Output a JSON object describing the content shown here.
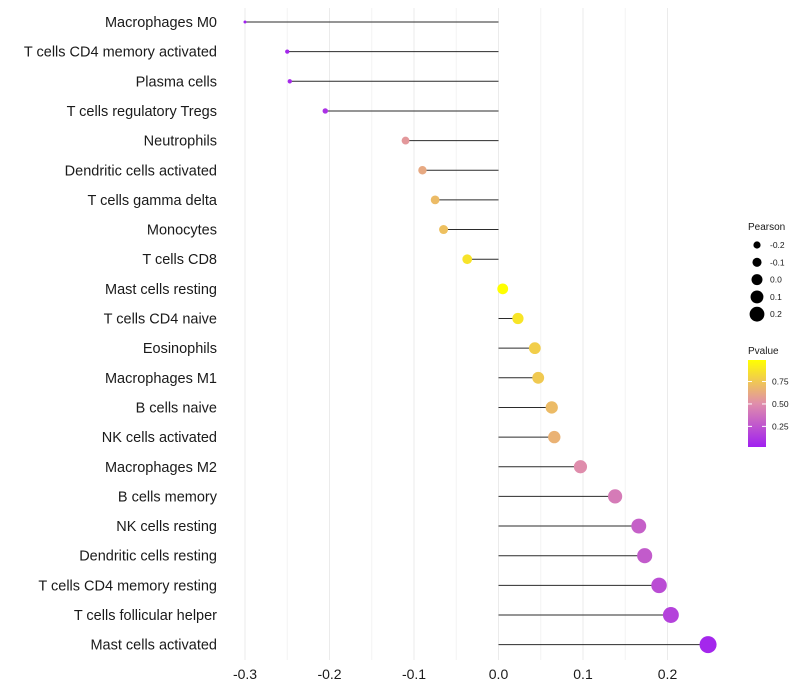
{
  "chart_data": {
    "type": "lollipop",
    "title": "",
    "xlabel": "",
    "ylabel": "",
    "xlim": [
      -0.31,
      0.26
    ],
    "x_ticks": [
      -0.3,
      -0.2,
      -0.1,
      0.0,
      0.1,
      0.2
    ],
    "x_tick_labels": [
      "-0.3",
      "-0.2",
      "-0.1",
      "0.0",
      "0.1",
      "0.2"
    ],
    "grid": true,
    "categories": [
      "Macrophages M0",
      "T cells CD4 memory activated",
      "Plasma cells",
      "T cells regulatory  Tregs ",
      "Neutrophils",
      "Dendritic cells activated",
      "T cells gamma delta",
      "Monocytes",
      "T cells CD8",
      "Mast cells resting",
      "T cells CD4 naive",
      "Eosinophils",
      "Macrophages M1",
      "B cells naive",
      "NK cells activated",
      "Macrophages M2",
      "B cells memory",
      "NK cells resting",
      "Dendritic cells resting",
      "T cells CD4 memory resting",
      "T cells follicular helper",
      "Mast cells activated"
    ],
    "pearson": [
      -0.3,
      -0.25,
      -0.247,
      -0.205,
      -0.11,
      -0.09,
      -0.075,
      -0.065,
      -0.037,
      0.005,
      0.023,
      0.043,
      0.047,
      0.063,
      0.066,
      0.097,
      0.138,
      0.166,
      0.173,
      0.19,
      0.204,
      0.248
    ],
    "pvalue": [
      0.02,
      0.05,
      0.06,
      0.1,
      0.55,
      0.62,
      0.7,
      0.72,
      0.87,
      0.99,
      0.88,
      0.78,
      0.76,
      0.7,
      0.66,
      0.5,
      0.42,
      0.3,
      0.28,
      0.22,
      0.17,
      0.05
    ],
    "legend": {
      "placement": "right",
      "size_title": "Pearson",
      "size_values": [
        -0.2,
        -0.1,
        0.0,
        0.1,
        0.2
      ],
      "size_labels": [
        "-0.2",
        "-0.1",
        "0.0",
        "0.1",
        "0.2"
      ],
      "color_title": "Pvalue",
      "color_ticks": [
        0.25,
        0.5,
        0.75
      ],
      "color_tick_labels": [
        "0.25",
        "0.50",
        "0.75"
      ],
      "color_range": [
        0.02,
        0.99
      ],
      "color_low": "#a020f0",
      "color_mid": "#e08eab",
      "color_high": "#ffff00"
    }
  }
}
